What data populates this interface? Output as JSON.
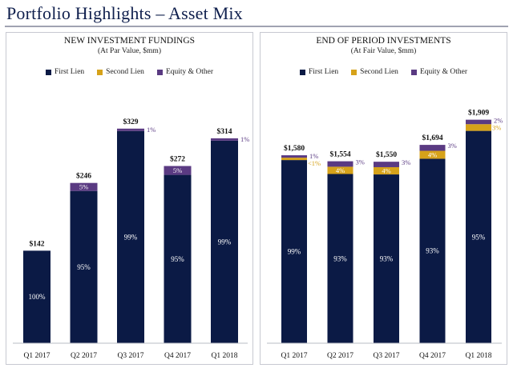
{
  "page": {
    "title": "Portfolio Highlights – Asset Mix"
  },
  "colors": {
    "first_lien": "#0b1a45",
    "second_lien": "#d6a21a",
    "equity_other": "#5a3a82",
    "segment_label": "#ffffff",
    "outside_label_purple": "#5a3a82",
    "outside_label_gold": "#d6a21a",
    "total_label": "#111111"
  },
  "legend": {
    "first_lien": "First Lien",
    "second_lien": "Second Lien",
    "equity_other": "Equity & Other"
  },
  "chart_data": [
    {
      "id": "fundings",
      "type": "bar",
      "stacked": true,
      "title": "NEW INVESTMENT FUNDINGS",
      "subtitle": "(At Par Value, $mm)",
      "categories": [
        "Q1 2017",
        "Q2 2017",
        "Q3 2017",
        "Q4 2017",
        "Q1 2018"
      ],
      "totals": [
        142,
        246,
        329,
        272,
        314
      ],
      "total_labels": [
        "$142",
        "$246",
        "$329",
        "$272",
        "$314"
      ],
      "ylim": [
        0,
        350
      ],
      "legend_position": "top",
      "series": [
        {
          "name": "First Lien",
          "key": "first_lien",
          "percents": [
            100,
            95,
            99,
            95,
            99
          ],
          "labels": [
            "100%",
            "95%",
            "99%",
            "95%",
            "99%"
          ]
        },
        {
          "name": "Second Lien",
          "key": "second_lien",
          "percents": [
            0,
            0,
            0,
            0,
            0
          ],
          "labels": [
            "",
            "",
            "",
            "",
            ""
          ]
        },
        {
          "name": "Equity & Other",
          "key": "equity_other",
          "percents": [
            0,
            5,
            1,
            5,
            1
          ],
          "labels": [
            "",
            "5%",
            "1%",
            "5%",
            "1%"
          ]
        }
      ]
    },
    {
      "id": "investments",
      "type": "bar",
      "stacked": true,
      "title": "END OF PERIOD INVESTMENTS",
      "subtitle": "(At Fair Value, $mm)",
      "categories": [
        "Q1 2017",
        "Q2 2017",
        "Q3 2017",
        "Q4 2017",
        "Q1 2018"
      ],
      "totals": [
        1580,
        1554,
        1550,
        1694,
        1909
      ],
      "total_labels": [
        "$1,580",
        "$1,554",
        "$1,550",
        "$1,694",
        "$1,909"
      ],
      "ylim": [
        0,
        2050
      ],
      "legend_position": "top",
      "series": [
        {
          "name": "First Lien",
          "key": "first_lien",
          "percents": [
            99,
            93,
            93,
            93,
            95
          ],
          "labels": [
            "99%",
            "93%",
            "93%",
            "93%",
            "95%"
          ]
        },
        {
          "name": "Second Lien",
          "key": "second_lien",
          "percents": [
            0.5,
            4,
            4,
            4,
            3
          ],
          "labels": [
            "<1%",
            "4%",
            "4%",
            "4%",
            "3%"
          ]
        },
        {
          "name": "Equity & Other",
          "key": "equity_other",
          "percents": [
            1,
            3,
            3,
            3,
            2
          ],
          "labels": [
            "1%",
            "3%",
            "3%",
            "3%",
            "2%"
          ]
        }
      ]
    }
  ]
}
